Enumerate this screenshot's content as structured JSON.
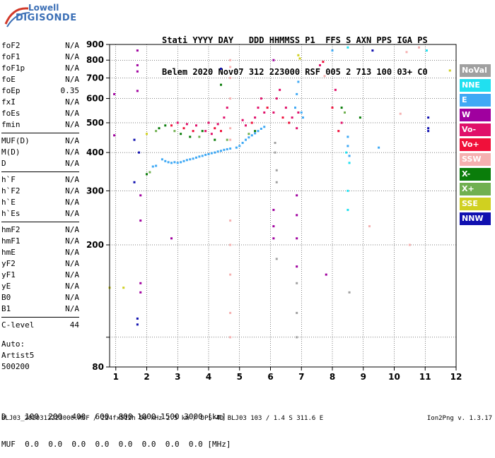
{
  "logo": {
    "top": "Lowell",
    "bottom": "DIGISONDE"
  },
  "header": {
    "row1": "Stati YYYY DAY   DDD HHMMSS P1  FFS S AXN PPS IGA PS",
    "row2": "Belem 2020 Nov07 312 223000 RSF 005 2 713 100 03+ C0"
  },
  "params_groups": [
    [
      {
        "name": "foF2",
        "value": "N/A"
      },
      {
        "name": "foF1",
        "value": "N/A"
      },
      {
        "name": "foF1p",
        "value": "N/A"
      },
      {
        "name": "foE",
        "value": "N/A"
      },
      {
        "name": "foEp",
        "value": "0.35"
      },
      {
        "name": "fxI",
        "value": "N/A"
      },
      {
        "name": "foEs",
        "value": "N/A"
      },
      {
        "name": "fmin",
        "value": "N/A"
      }
    ],
    [
      {
        "name": "MUF(D)",
        "value": "N/A"
      },
      {
        "name": "M(D)",
        "value": "N/A"
      },
      {
        "name": "D",
        "value": "N/A"
      }
    ],
    [
      {
        "name": "h`F",
        "value": "N/A"
      },
      {
        "name": "h`F2",
        "value": "N/A"
      },
      {
        "name": "h`E",
        "value": "N/A"
      },
      {
        "name": "h`Es",
        "value": "N/A"
      }
    ],
    [
      {
        "name": "hmF2",
        "value": "N/A"
      },
      {
        "name": "hmF1",
        "value": "N/A"
      },
      {
        "name": "hmE",
        "value": "N/A"
      },
      {
        "name": "yF2",
        "value": "N/A"
      },
      {
        "name": "yF1",
        "value": "N/A"
      },
      {
        "name": "yE",
        "value": "N/A"
      },
      {
        "name": "B0",
        "value": "N/A"
      },
      {
        "name": "B1",
        "value": "N/A"
      }
    ],
    [
      {
        "name": "C-level",
        "value": "44"
      }
    ]
  ],
  "auto": {
    "line1": "Auto:",
    "line2": "Artist5",
    "line3": "500200"
  },
  "bottom_table": {
    "d_row": "D    100  200  400  600  800 1000 1500 3000 [km]",
    "muf_row": "MUF  0.0  0.0  0.0  0.0  0.0  0.0  0.0  0.0 [MHz]"
  },
  "footer": "BLJ03_2020312223000.RSF / 224fx512h 50 kHz 2.5 km / DPS-4D BLJ03 103 / 1.4 S 311.6 E",
  "version": "Ion2Png v. 1.3.17",
  "legend": [
    {
      "label": "NoVal",
      "color": "#a0a0a0"
    },
    {
      "label": "NNE",
      "color": "#20e0f0"
    },
    {
      "label": "E",
      "color": "#3fa9f5"
    },
    {
      "label": "W",
      "color": "#a0009f"
    },
    {
      "label": "Vo-",
      "color": "#e0106a"
    },
    {
      "label": "Vo+",
      "color": "#f0103a"
    },
    {
      "label": "SSW",
      "color": "#f5b0b0"
    },
    {
      "label": "X-",
      "color": "#0a7d0a"
    },
    {
      "label": "X+",
      "color": "#70b050"
    },
    {
      "label": "SSE",
      "color": "#d0d020"
    },
    {
      "label": "NNW",
      "color": "#1010b0"
    }
  ],
  "chart_data": {
    "type": "scatter",
    "xlim": [
      0.8,
      12
    ],
    "ylim": [
      80,
      900
    ],
    "x_scale": "linear",
    "y_scale": "log",
    "xticks": [
      1,
      2,
      3,
      4,
      5,
      6,
      7,
      8,
      9,
      10,
      11,
      12
    ],
    "yticks": [
      80,
      100,
      200,
      300,
      400,
      500,
      600,
      700,
      800,
      900
    ],
    "ytick_labels": [
      "80",
      "",
      "200",
      "300",
      "400",
      "500",
      "600",
      "700",
      "800",
      "900"
    ],
    "grid": true,
    "series": [
      {
        "name": "E",
        "color": "#3fa9f5",
        "points": [
          [
            2.5,
            380
          ],
          [
            2.6,
            375
          ],
          [
            2.7,
            372
          ],
          [
            2.8,
            370
          ],
          [
            2.9,
            372
          ],
          [
            3.0,
            370
          ],
          [
            3.1,
            372
          ],
          [
            3.2,
            375
          ],
          [
            3.3,
            378
          ],
          [
            3.4,
            380
          ],
          [
            3.5,
            382
          ],
          [
            3.6,
            385
          ],
          [
            3.7,
            388
          ],
          [
            3.8,
            390
          ],
          [
            3.9,
            393
          ],
          [
            4.0,
            395
          ],
          [
            4.1,
            398
          ],
          [
            4.2,
            400
          ],
          [
            4.3,
            403
          ],
          [
            4.4,
            405
          ],
          [
            4.5,
            408
          ],
          [
            4.6,
            410
          ],
          [
            4.7,
            412
          ],
          [
            4.9,
            415
          ],
          [
            5.0,
            420
          ],
          [
            5.1,
            430
          ],
          [
            5.2,
            440
          ],
          [
            5.3,
            448
          ],
          [
            5.4,
            455
          ],
          [
            5.5,
            462
          ],
          [
            5.6,
            470
          ],
          [
            5.7,
            478
          ],
          [
            5.8,
            485
          ],
          [
            6.8,
            560
          ],
          [
            6.85,
            620
          ],
          [
            6.9,
            680
          ],
          [
            7.0,
            540
          ],
          [
            7.05,
            520
          ],
          [
            8.0,
            860
          ],
          [
            8.5,
            450
          ],
          [
            8.5,
            420
          ],
          [
            8.55,
            390
          ],
          [
            9.5,
            415
          ],
          [
            2.2,
            360
          ],
          [
            2.3,
            362
          ]
        ]
      },
      {
        "name": "NNE",
        "color": "#20e0f0",
        "points": [
          [
            8.5,
            880
          ],
          [
            8.45,
            400
          ],
          [
            8.55,
            370
          ],
          [
            11.05,
            860
          ],
          [
            8.5,
            300
          ],
          [
            8.5,
            260
          ]
        ]
      },
      {
        "name": "Vo-",
        "color": "#e0106a",
        "points": [
          [
            3.0,
            500
          ],
          [
            3.3,
            495
          ],
          [
            3.6,
            490
          ],
          [
            4.0,
            500
          ],
          [
            4.3,
            495
          ],
          [
            4.5,
            520
          ],
          [
            4.6,
            560
          ],
          [
            5.1,
            510
          ],
          [
            5.2,
            490
          ],
          [
            5.5,
            520
          ],
          [
            5.6,
            560
          ],
          [
            5.7,
            600
          ],
          [
            5.8,
            540
          ],
          [
            6.1,
            540
          ],
          [
            6.2,
            600
          ],
          [
            6.3,
            640
          ],
          [
            6.5,
            560
          ],
          [
            6.7,
            520
          ],
          [
            6.9,
            540
          ],
          [
            7.6,
            770
          ],
          [
            8.1,
            640
          ],
          [
            8.3,
            500
          ],
          [
            4.1,
            460
          ],
          [
            3.9,
            470
          ],
          [
            6.85,
            480
          ]
        ]
      },
      {
        "name": "Vo+",
        "color": "#f0103a",
        "points": [
          [
            2.8,
            490
          ],
          [
            3.2,
            480
          ],
          [
            3.5,
            470
          ],
          [
            4.2,
            480
          ],
          [
            4.4,
            470
          ],
          [
            5.4,
            500
          ],
          [
            5.9,
            560
          ],
          [
            6.4,
            520
          ],
          [
            6.6,
            500
          ],
          [
            7.7,
            790
          ],
          [
            8.0,
            560
          ],
          [
            8.2,
            470
          ]
        ]
      },
      {
        "name": "W",
        "color": "#a0009f",
        "points": [
          [
            1.7,
            860
          ],
          [
            1.7,
            770
          ],
          [
            1.7,
            735
          ],
          [
            1.7,
            635
          ],
          [
            0.95,
            620
          ],
          [
            0.95,
            455
          ],
          [
            1.8,
            290
          ],
          [
            1.8,
            240
          ],
          [
            1.8,
            150
          ],
          [
            1.8,
            140
          ],
          [
            6.1,
            260
          ],
          [
            6.1,
            230
          ],
          [
            6.1,
            210
          ],
          [
            6.85,
            290
          ],
          [
            6.85,
            250
          ],
          [
            6.85,
            210
          ],
          [
            6.85,
            170
          ],
          [
            7.8,
            160
          ],
          [
            6.1,
            800
          ],
          [
            2.8,
            210
          ]
        ]
      },
      {
        "name": "X-",
        "color": "#0a7d0a",
        "points": [
          [
            2.4,
            480
          ],
          [
            2.6,
            490
          ],
          [
            3.1,
            460
          ],
          [
            3.4,
            450
          ],
          [
            3.8,
            470
          ],
          [
            4.2,
            440
          ],
          [
            4.4,
            665
          ],
          [
            5.5,
            470
          ],
          [
            8.3,
            560
          ],
          [
            8.9,
            520
          ],
          [
            2.0,
            340
          ]
        ]
      },
      {
        "name": "X+",
        "color": "#70b050",
        "points": [
          [
            2.3,
            470
          ],
          [
            2.9,
            470
          ],
          [
            3.7,
            450
          ],
          [
            4.6,
            440
          ],
          [
            5.3,
            460
          ],
          [
            8.4,
            540
          ],
          [
            2.1,
            345
          ]
        ]
      },
      {
        "name": "SSW",
        "color": "#f5b0b0",
        "points": [
          [
            4.7,
            800
          ],
          [
            4.7,
            760
          ],
          [
            4.7,
            700
          ],
          [
            4.7,
            600
          ],
          [
            4.7,
            480
          ],
          [
            4.7,
            440
          ],
          [
            4.7,
            240
          ],
          [
            4.7,
            200
          ],
          [
            4.7,
            160
          ],
          [
            4.7,
            120
          ],
          [
            4.7,
            100
          ],
          [
            7.75,
            710
          ],
          [
            10.2,
            535
          ],
          [
            10.5,
            200
          ],
          [
            10.8,
            880
          ],
          [
            10.4,
            850
          ],
          [
            9.2,
            230
          ]
        ]
      },
      {
        "name": "SSE",
        "color": "#d0d020",
        "points": [
          [
            0.8,
            145
          ],
          [
            6.9,
            830
          ],
          [
            6.95,
            810
          ],
          [
            11.8,
            740
          ],
          [
            2.0,
            460
          ],
          [
            1.25,
            145
          ]
        ]
      },
      {
        "name": "NNW",
        "color": "#1010b0",
        "points": [
          [
            11.1,
            520
          ],
          [
            11.1,
            480
          ],
          [
            11.1,
            470
          ],
          [
            9.3,
            860
          ],
          [
            4.4,
            750
          ],
          [
            1.6,
            320
          ],
          [
            1.6,
            440
          ],
          [
            1.75,
            400
          ],
          [
            1.7,
            115
          ],
          [
            1.7,
            110
          ]
        ]
      },
      {
        "name": "NoVal",
        "color": "#a0a0a0",
        "points": [
          [
            6.15,
            430
          ],
          [
            6.15,
            400
          ],
          [
            6.2,
            350
          ],
          [
            6.2,
            320
          ],
          [
            6.85,
            150
          ],
          [
            6.85,
            120
          ],
          [
            6.85,
            100
          ],
          [
            8.55,
            140
          ],
          [
            6.2,
            180
          ]
        ]
      }
    ]
  }
}
